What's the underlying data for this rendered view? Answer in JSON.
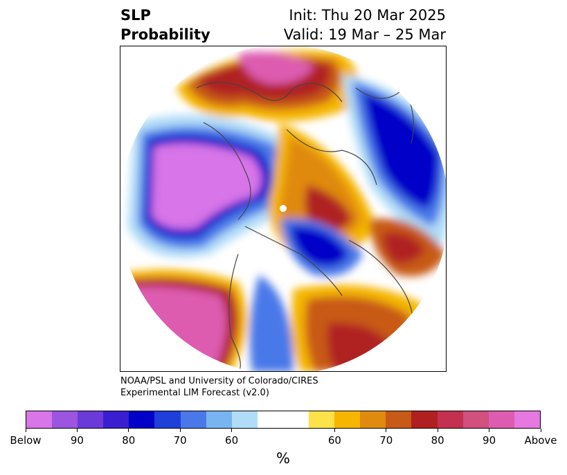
{
  "header": {
    "title_line1": "SLP",
    "title_line2": "Probability",
    "init": "Init: Thu 20 Mar 2025",
    "valid": "Valid: 19 Mar – 25 Mar"
  },
  "credit": {
    "line1": "NOAA/PSL and University of Colorado/CIRES",
    "line2": "Experimental LIM Forecast (v2.0)"
  },
  "colorbar": {
    "colors": [
      "#d875e8",
      "#9b55e0",
      "#6b3ad8",
      "#3a1fd0",
      "#0000c8",
      "#1e3fd8",
      "#4a78e8",
      "#78b4f0",
      "#b0dcf8",
      "#ffffff",
      "#ffffff",
      "#fde24a",
      "#f5b500",
      "#e08a10",
      "#c85a18",
      "#b02020",
      "#c43050",
      "#d0507e",
      "#dd5cb0",
      "#e678e0"
    ],
    "ticks": [
      "Below",
      "90",
      "80",
      "70",
      "60",
      "60",
      "70",
      "80",
      "90",
      "Above"
    ],
    "unit": "%"
  },
  "map": {
    "region_colors": {
      "above_high": "#dd5cb0",
      "above_mid": "#b02020",
      "above_low": "#c85a18",
      "above_min": "#f5b500",
      "above_faint": "#fde24a",
      "below_high": "#d875e8",
      "below_mid": "#0000c8",
      "below_low": "#4a78e8",
      "below_faint": "#b0dcf8"
    }
  }
}
